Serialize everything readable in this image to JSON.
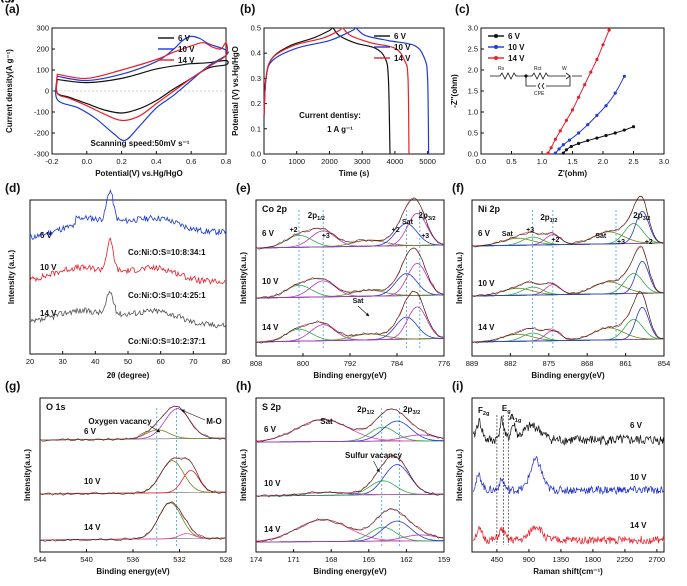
{
  "colors": {
    "black": "#111111",
    "blue": "#1f3ad9",
    "red": "#e8202a",
    "gray": "#555555",
    "green": "#2ea84a",
    "purple": "#b03ab8",
    "magenta": "#e044b0",
    "lightblue": "#3aa0e0",
    "darkblue": "#1a2acc",
    "olive": "#6a8a1a"
  },
  "chart_data": [
    {
      "panel": "(a)",
      "type": "line",
      "xlabel": "Potential(V) vs.Hg/HgO",
      "ylabel": "Current density(A g⁻¹)",
      "xlim": [
        -0.2,
        0.8
      ],
      "ylim": [
        -300,
        300
      ],
      "xticks": [
        "-0.2",
        "0.0",
        "0.2",
        "0.4",
        "0.6",
        "0.8"
      ],
      "yticks": [
        "-300",
        "-200",
        "-100",
        "0",
        "100",
        "200",
        "300"
      ],
      "legend": [
        "6 V",
        "10 V",
        "14 V"
      ],
      "annotation": "Scanning speed:50mV s⁻¹",
      "series": [
        {
          "name": "6 V",
          "upper": [
            [
              -0.17,
              55
            ],
            [
              0.0,
              40
            ],
            [
              0.2,
              60
            ],
            [
              0.4,
              105
            ],
            [
              0.55,
              125
            ],
            [
              0.6,
              130
            ],
            [
              0.7,
              135
            ],
            [
              0.8,
              145
            ]
          ],
          "lower": [
            [
              0.8,
              125
            ],
            [
              0.7,
              110
            ],
            [
              0.6,
              60
            ],
            [
              0.5,
              10
            ],
            [
              0.4,
              -45
            ],
            [
              0.3,
              -85
            ],
            [
              0.2,
              -105
            ],
            [
              0.1,
              -90
            ],
            [
              0.0,
              -60
            ],
            [
              -0.1,
              -30
            ],
            [
              -0.17,
              -10
            ]
          ]
        },
        {
          "name": "10 V",
          "upper": [
            [
              -0.17,
              70
            ],
            [
              0.0,
              50
            ],
            [
              0.2,
              80
            ],
            [
              0.4,
              140
            ],
            [
              0.5,
              200
            ],
            [
              0.55,
              240
            ],
            [
              0.6,
              260
            ],
            [
              0.65,
              250
            ],
            [
              0.7,
              225
            ],
            [
              0.8,
              195
            ]
          ],
          "lower": [
            [
              0.8,
              170
            ],
            [
              0.7,
              120
            ],
            [
              0.6,
              50
            ],
            [
              0.5,
              -20
            ],
            [
              0.4,
              -80
            ],
            [
              0.3,
              -170
            ],
            [
              0.22,
              -235
            ],
            [
              0.15,
              -200
            ],
            [
              0.05,
              -130
            ],
            [
              -0.05,
              -80
            ],
            [
              -0.17,
              -40
            ]
          ]
        },
        {
          "name": "14 V",
          "upper": [
            [
              -0.17,
              80
            ],
            [
              0.0,
              60
            ],
            [
              0.2,
              100
            ],
            [
              0.4,
              150
            ],
            [
              0.5,
              185
            ],
            [
              0.6,
              215
            ],
            [
              0.67,
              230
            ],
            [
              0.72,
              210
            ],
            [
              0.77,
              200
            ],
            [
              0.8,
              230
            ]
          ],
          "lower": [
            [
              0.8,
              170
            ],
            [
              0.7,
              115
            ],
            [
              0.6,
              60
            ],
            [
              0.5,
              0
            ],
            [
              0.4,
              -60
            ],
            [
              0.3,
              -120
            ],
            [
              0.2,
              -140
            ],
            [
              0.1,
              -110
            ],
            [
              0.0,
              -70
            ],
            [
              -0.1,
              -35
            ],
            [
              -0.17,
              -10
            ]
          ]
        }
      ]
    },
    {
      "panel": "(b)",
      "type": "line",
      "xlabel": "Time (s)",
      "ylabel": "Potential (V) vs.Hg/HgO",
      "xlim": [
        0,
        5500
      ],
      "ylim": [
        0,
        0.5
      ],
      "xticks": [
        "0",
        "1000",
        "2000",
        "3000",
        "4000",
        "5000"
      ],
      "yticks": [
        "0.0",
        "0.1",
        "0.2",
        "0.3",
        "0.4",
        "0.5"
      ],
      "legend": [
        "6 V",
        "10 V",
        "14 V"
      ],
      "annotation": "Current dentisy:",
      "annotation2": "1 A g⁻¹",
      "series": [
        {
          "name": "6 V",
          "points": [
            [
              0,
              0.15
            ],
            [
              60,
              0.3
            ],
            [
              250,
              0.38
            ],
            [
              800,
              0.43
            ],
            [
              1500,
              0.46
            ],
            [
              2000,
              0.49
            ],
            [
              2100,
              0.5
            ],
            [
              2300,
              0.47
            ],
            [
              2800,
              0.44
            ],
            [
              3400,
              0.42
            ],
            [
              3700,
              0.38
            ],
            [
              3800,
              0.3
            ],
            [
              3850,
              0.0
            ]
          ]
        },
        {
          "name": "10 V",
          "points": [
            [
              0,
              0.15
            ],
            [
              60,
              0.3
            ],
            [
              250,
              0.37
            ],
            [
              1000,
              0.42
            ],
            [
              2000,
              0.45
            ],
            [
              2700,
              0.49
            ],
            [
              2800,
              0.5
            ],
            [
              3100,
              0.47
            ],
            [
              3800,
              0.45
            ],
            [
              4600,
              0.43
            ],
            [
              4900,
              0.38
            ],
            [
              5000,
              0.3
            ],
            [
              5030,
              0.0
            ]
          ]
        },
        {
          "name": "14 V",
          "points": [
            [
              0,
              0.15
            ],
            [
              60,
              0.3
            ],
            [
              250,
              0.38
            ],
            [
              900,
              0.43
            ],
            [
              1800,
              0.46
            ],
            [
              2300,
              0.49
            ],
            [
              2400,
              0.5
            ],
            [
              2650,
              0.47
            ],
            [
              3300,
              0.44
            ],
            [
              4000,
              0.42
            ],
            [
              4300,
              0.37
            ],
            [
              4400,
              0.3
            ],
            [
              4430,
              0.0
            ]
          ]
        }
      ]
    },
    {
      "panel": "(c)",
      "type": "scatter",
      "xlabel": "Z'(ohm)",
      "ylabel": "-Z''(ohm)",
      "xlim": [
        0,
        3
      ],
      "ylim": [
        0,
        3
      ],
      "xticks": [
        "0.0",
        "0.5",
        "1.0",
        "1.5",
        "2.0",
        "2.5",
        "3.0"
      ],
      "yticks": [
        "0.0",
        "0.5",
        "1.0",
        "1.5",
        "2.0",
        "2.5",
        "3.0"
      ],
      "legend": [
        "6 V",
        "10 V",
        "14 V"
      ],
      "circuit_labels": [
        "Rs",
        "Rct",
        "W",
        "CPE"
      ],
      "series": [
        {
          "name": "6 V",
          "points": [
            [
              1.35,
              0.02
            ],
            [
              1.4,
              0.1
            ],
            [
              1.48,
              0.18
            ],
            [
              1.6,
              0.25
            ],
            [
              1.75,
              0.32
            ],
            [
              1.9,
              0.38
            ],
            [
              2.05,
              0.44
            ],
            [
              2.2,
              0.5
            ],
            [
              2.35,
              0.57
            ],
            [
              2.5,
              0.65
            ]
          ]
        },
        {
          "name": "10 V",
          "points": [
            [
              1.22,
              0.02
            ],
            [
              1.28,
              0.12
            ],
            [
              1.35,
              0.22
            ],
            [
              1.45,
              0.33
            ],
            [
              1.6,
              0.5
            ],
            [
              1.75,
              0.7
            ],
            [
              1.9,
              0.92
            ],
            [
              2.05,
              1.15
            ],
            [
              2.2,
              1.45
            ],
            [
              2.35,
              1.85
            ]
          ]
        },
        {
          "name": "14 V",
          "points": [
            [
              1.1,
              0.02
            ],
            [
              1.15,
              0.15
            ],
            [
              1.22,
              0.35
            ],
            [
              1.3,
              0.55
            ],
            [
              1.4,
              0.8
            ],
            [
              1.5,
              1.05
            ],
            [
              1.6,
              1.35
            ],
            [
              1.7,
              1.65
            ],
            [
              1.8,
              1.95
            ],
            [
              1.9,
              2.25
            ],
            [
              2.0,
              2.6
            ],
            [
              2.1,
              2.95
            ]
          ]
        }
      ]
    },
    {
      "panel": "(d)",
      "type": "line",
      "xlabel": "2θ (degree)",
      "ylabel": "Intensity (a.u.)",
      "xlim": [
        20,
        80
      ],
      "xticks": [
        "20",
        "30",
        "40",
        "50",
        "60",
        "70",
        "80"
      ],
      "labels": [
        "6 V",
        "10 V",
        "14 V"
      ],
      "ratios": [
        "Co:Ni:O:S=10:8:34:1",
        "Co:Ni:O:S=10:4:25:1",
        "Co:Ni:O:S=10:2:37:1"
      ]
    },
    {
      "panel": "(e)",
      "type": "line",
      "xlabel": "Binding energy(eV)",
      "ylabel": "Intensity(a.u.)",
      "title": "Co 2p",
      "xlim": [
        810,
        775
      ],
      "xticks": [
        "808",
        "800",
        "792",
        "784",
        "776"
      ],
      "labels": [
        "6 V",
        "10 V",
        "14 V",
        "+2",
        "+3",
        "2p1/2",
        "+2",
        "Sat",
        "2p3/2",
        "+3",
        "Sat"
      ]
    },
    {
      "panel": "(f)",
      "type": "line",
      "xlabel": "Binding energy(eV)",
      "ylabel": "Intensity(a.u.)",
      "title": "Ni 2p",
      "xlim": [
        889,
        851
      ],
      "xticks": [
        "889",
        "882",
        "875",
        "868",
        "861",
        "854"
      ],
      "labels": [
        "6 V",
        "10 V",
        "14 V",
        "Sat",
        "+3",
        "2p1/2",
        "+2",
        "Sat",
        "+3",
        "2p3/2",
        "+2"
      ]
    },
    {
      "panel": "(g)",
      "type": "line",
      "xlabel": "Binding energy(eV)",
      "ylabel": "Intensity(a.u.)",
      "title": "O 1s",
      "xlim": [
        544,
        526
      ],
      "xticks": [
        "544",
        "540",
        "536",
        "532",
        "528"
      ],
      "labels": [
        "6 V",
        "10 V",
        "14 V",
        "Oxygen vacancy",
        "M-O"
      ]
    },
    {
      "panel": "(h)",
      "type": "line",
      "xlabel": "Binding energy(eV)",
      "ylabel": "Intensity(a.u.)",
      "title": "S 2p",
      "xlim": [
        174,
        158
      ],
      "xticks": [
        "174",
        "171",
        "168",
        "165",
        "162",
        "159"
      ],
      "labels": [
        "6 V",
        "10 V",
        "14 V",
        "Sat",
        "2p1/2",
        "2p3/2",
        "Sulfur vacancy"
      ]
    },
    {
      "panel": "(i)",
      "type": "line",
      "xlabel": "Raman shift(cm⁻¹)",
      "ylabel": "Intensity(a.u.)",
      "xlim": [
        100,
        2800
      ],
      "xticks": [
        "450",
        "900",
        "1350",
        "1800",
        "2250",
        "2700"
      ],
      "labels": [
        "6 V",
        "10 V",
        "14 V",
        "F2g",
        "Eg",
        "A1g"
      ]
    }
  ]
}
